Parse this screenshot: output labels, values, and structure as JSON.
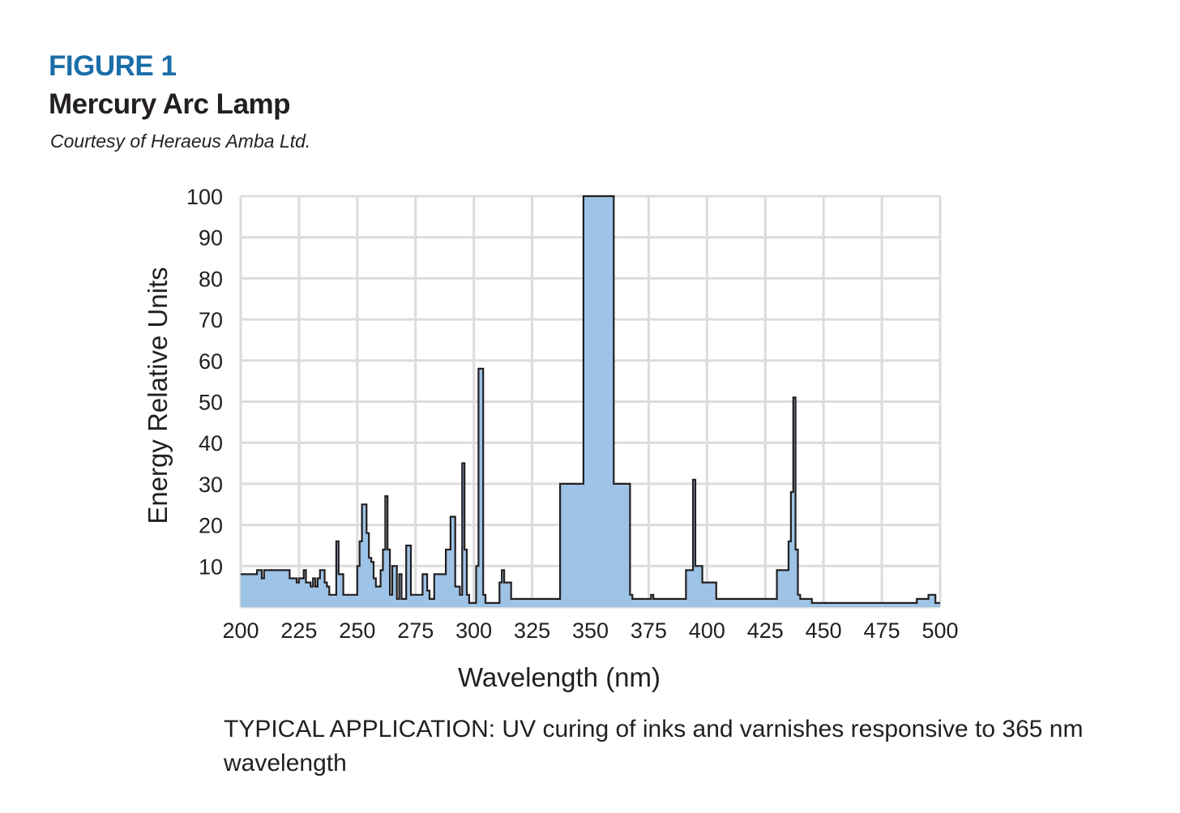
{
  "figure": {
    "label": "FIGURE 1",
    "title": "Mercury Arc Lamp",
    "credit": "Courtesy of Heraeus Amba Ltd.",
    "caption": "TYPICAL APPLICATION: UV curing of inks and varnishes responsive to 365 nm wavelength"
  },
  "colors": {
    "label_blue": "#1a6ea8",
    "fill": "#9dc3e6",
    "line": "#231f20",
    "grid": "#dcdcdc"
  },
  "chart_data": {
    "type": "area",
    "title": "Mercury Arc Lamp",
    "xlabel": "Wavelength (nm)",
    "ylabel": "Energy Relative Units",
    "xlim": [
      200,
      500
    ],
    "ylim": [
      0,
      100
    ],
    "grid": true,
    "step": true,
    "xticks": [
      "200",
      "225",
      "250",
      "275",
      "300",
      "325",
      "350",
      "375",
      "400",
      "425",
      "450",
      "475",
      "500"
    ],
    "yticks": [
      "10",
      "20",
      "30",
      "40",
      "50",
      "60",
      "70",
      "80",
      "90",
      "100"
    ],
    "series": [
      {
        "x": [
          200,
          205,
          207,
          209,
          210,
          211,
          220,
          221,
          224,
          225,
          227,
          228,
          230,
          231,
          232,
          233,
          234,
          236,
          237,
          238,
          240,
          241,
          242,
          244,
          250,
          251,
          252,
          253,
          254,
          255,
          256,
          257,
          258,
          260,
          261,
          262,
          263,
          264,
          265,
          266,
          267,
          268,
          269,
          271,
          272,
          273,
          274,
          276,
          277,
          278,
          279,
          280,
          281,
          283,
          288,
          290,
          292,
          294,
          295,
          296,
          297,
          298,
          299,
          300,
          301,
          302,
          303,
          304,
          305,
          306,
          311,
          312,
          313,
          316,
          318,
          320,
          333,
          334,
          335,
          336,
          337,
          347,
          360,
          367,
          368,
          369,
          371,
          372,
          374,
          375,
          376,
          377,
          390,
          391,
          394,
          395,
          398,
          404,
          405,
          407,
          408,
          409,
          410,
          411,
          430,
          435,
          436,
          437,
          438,
          439,
          440,
          441,
          442,
          443,
          444,
          445,
          460,
          480,
          490,
          495,
          498,
          500
        ],
        "y": [
          8,
          8,
          9,
          7,
          9,
          9,
          9,
          7,
          6,
          7,
          9,
          6,
          5,
          7,
          5,
          7,
          9,
          6,
          5,
          3,
          3,
          16,
          8,
          3,
          10,
          16,
          25,
          25,
          18,
          12,
          11,
          7,
          5,
          9,
          14,
          27,
          14,
          3,
          10,
          10,
          2,
          8,
          2,
          15,
          15,
          3,
          3,
          3,
          3,
          8,
          8,
          4,
          2,
          8,
          14,
          22,
          5,
          3,
          35,
          14,
          3,
          1,
          1,
          1,
          10,
          58,
          58,
          3,
          1,
          1,
          6,
          9,
          6,
          2,
          2,
          2,
          2,
          2,
          2,
          2,
          30,
          100,
          30,
          3,
          2,
          2,
          2,
          2,
          2,
          2,
          3,
          2,
          2,
          9,
          31,
          10,
          6,
          2,
          2,
          2,
          2,
          2,
          2,
          2,
          9,
          16,
          28,
          51,
          14,
          3,
          2,
          2,
          2,
          2,
          2,
          1,
          1,
          1,
          2,
          3,
          1,
          1
        ]
      }
    ]
  }
}
